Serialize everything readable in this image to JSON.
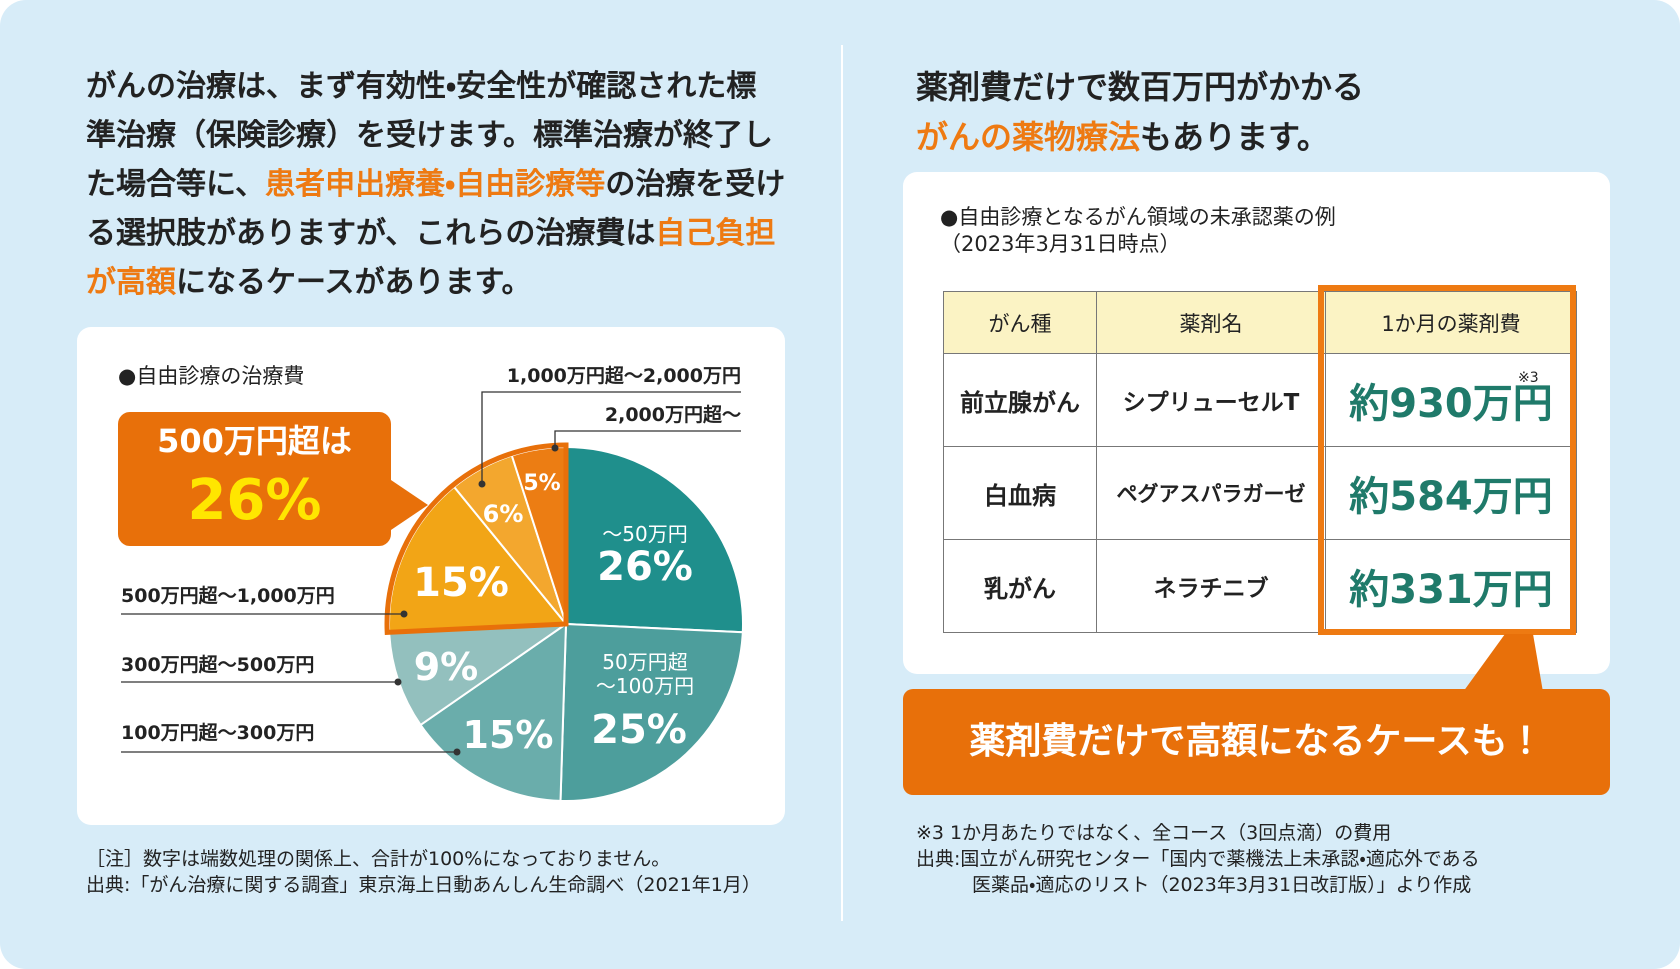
{
  "intro": {
    "segments": [
      {
        "text": "がんの治療は、まず有効性・安全性が確認された標準治療（保険診療）を受けます。標準治療が終了した場合等に、",
        "emphasis": false
      },
      {
        "text": "患者申出療養・自由診療等",
        "emphasis": true
      },
      {
        "text": "の治療を受ける選択肢がありますが、これらの治療費は",
        "emphasis": false
      },
      {
        "text": "自己負担が高額",
        "emphasis": true
      },
      {
        "text": "になるケースがあります。",
        "emphasis": false
      }
    ]
  },
  "chart_data": {
    "type": "pie",
    "title": "●自由診療の治療費",
    "categories": [
      "～50万円",
      "50万円超\n～100万円",
      "100万円超～300万円",
      "300万円超～500万円",
      "500万円超～1,000万円",
      "1,000万円超～2,000万円",
      "2,000万円超～"
    ],
    "values": [
      26,
      25,
      15,
      9,
      15,
      6,
      5
    ],
    "value_labels": [
      "26%",
      "25%",
      "15%",
      "9%",
      "15%",
      "6%",
      "5%"
    ],
    "colors": [
      "#1f8f8c",
      "#4d9e9c",
      "#6aadab",
      "#93c0be",
      "#f2a516",
      "#f3a72e",
      "#ec7d13"
    ],
    "callout": {
      "text": "500万円超は",
      "value": "26%"
    }
  },
  "left_notes": [
    "［注］数字は端数処理の関係上、合計が100%になっておりません。",
    "出典:「がん治療に関する調査」東京海上日動あんしん生命調べ（2021年1月）"
  ],
  "right_heading": {
    "line1": "薬剤費だけで数百万円がかかる",
    "emphasis": "がんの薬物療法",
    "rest": "もあります。"
  },
  "table": {
    "title": "●自由診療となるがん領域の未承認薬の例",
    "subtitle": "（2023年3月31日時点）",
    "header": [
      "がん種",
      "薬剤名",
      "1か月の薬剤費"
    ],
    "rows": [
      [
        "前立腺がん",
        "シプリューセルT",
        "約930万円"
      ],
      [
        "白血病",
        "ペグアスパラガーゼ",
        "約584万円"
      ],
      [
        "乳がん",
        "ネラチニブ",
        "約331万円"
      ]
    ],
    "note_mark": "※3"
  },
  "banner": "薬剤費だけで高額になるケースも！",
  "right_notes": [
    "※3 1か月あたりではなく、全コース（3回点滴）の費用",
    "出典:国立がん研究センター「国内で薬機法上未承認・適応外である",
    "医薬品・適応のリスト（2023年3月31日改訂版）」より作成"
  ]
}
